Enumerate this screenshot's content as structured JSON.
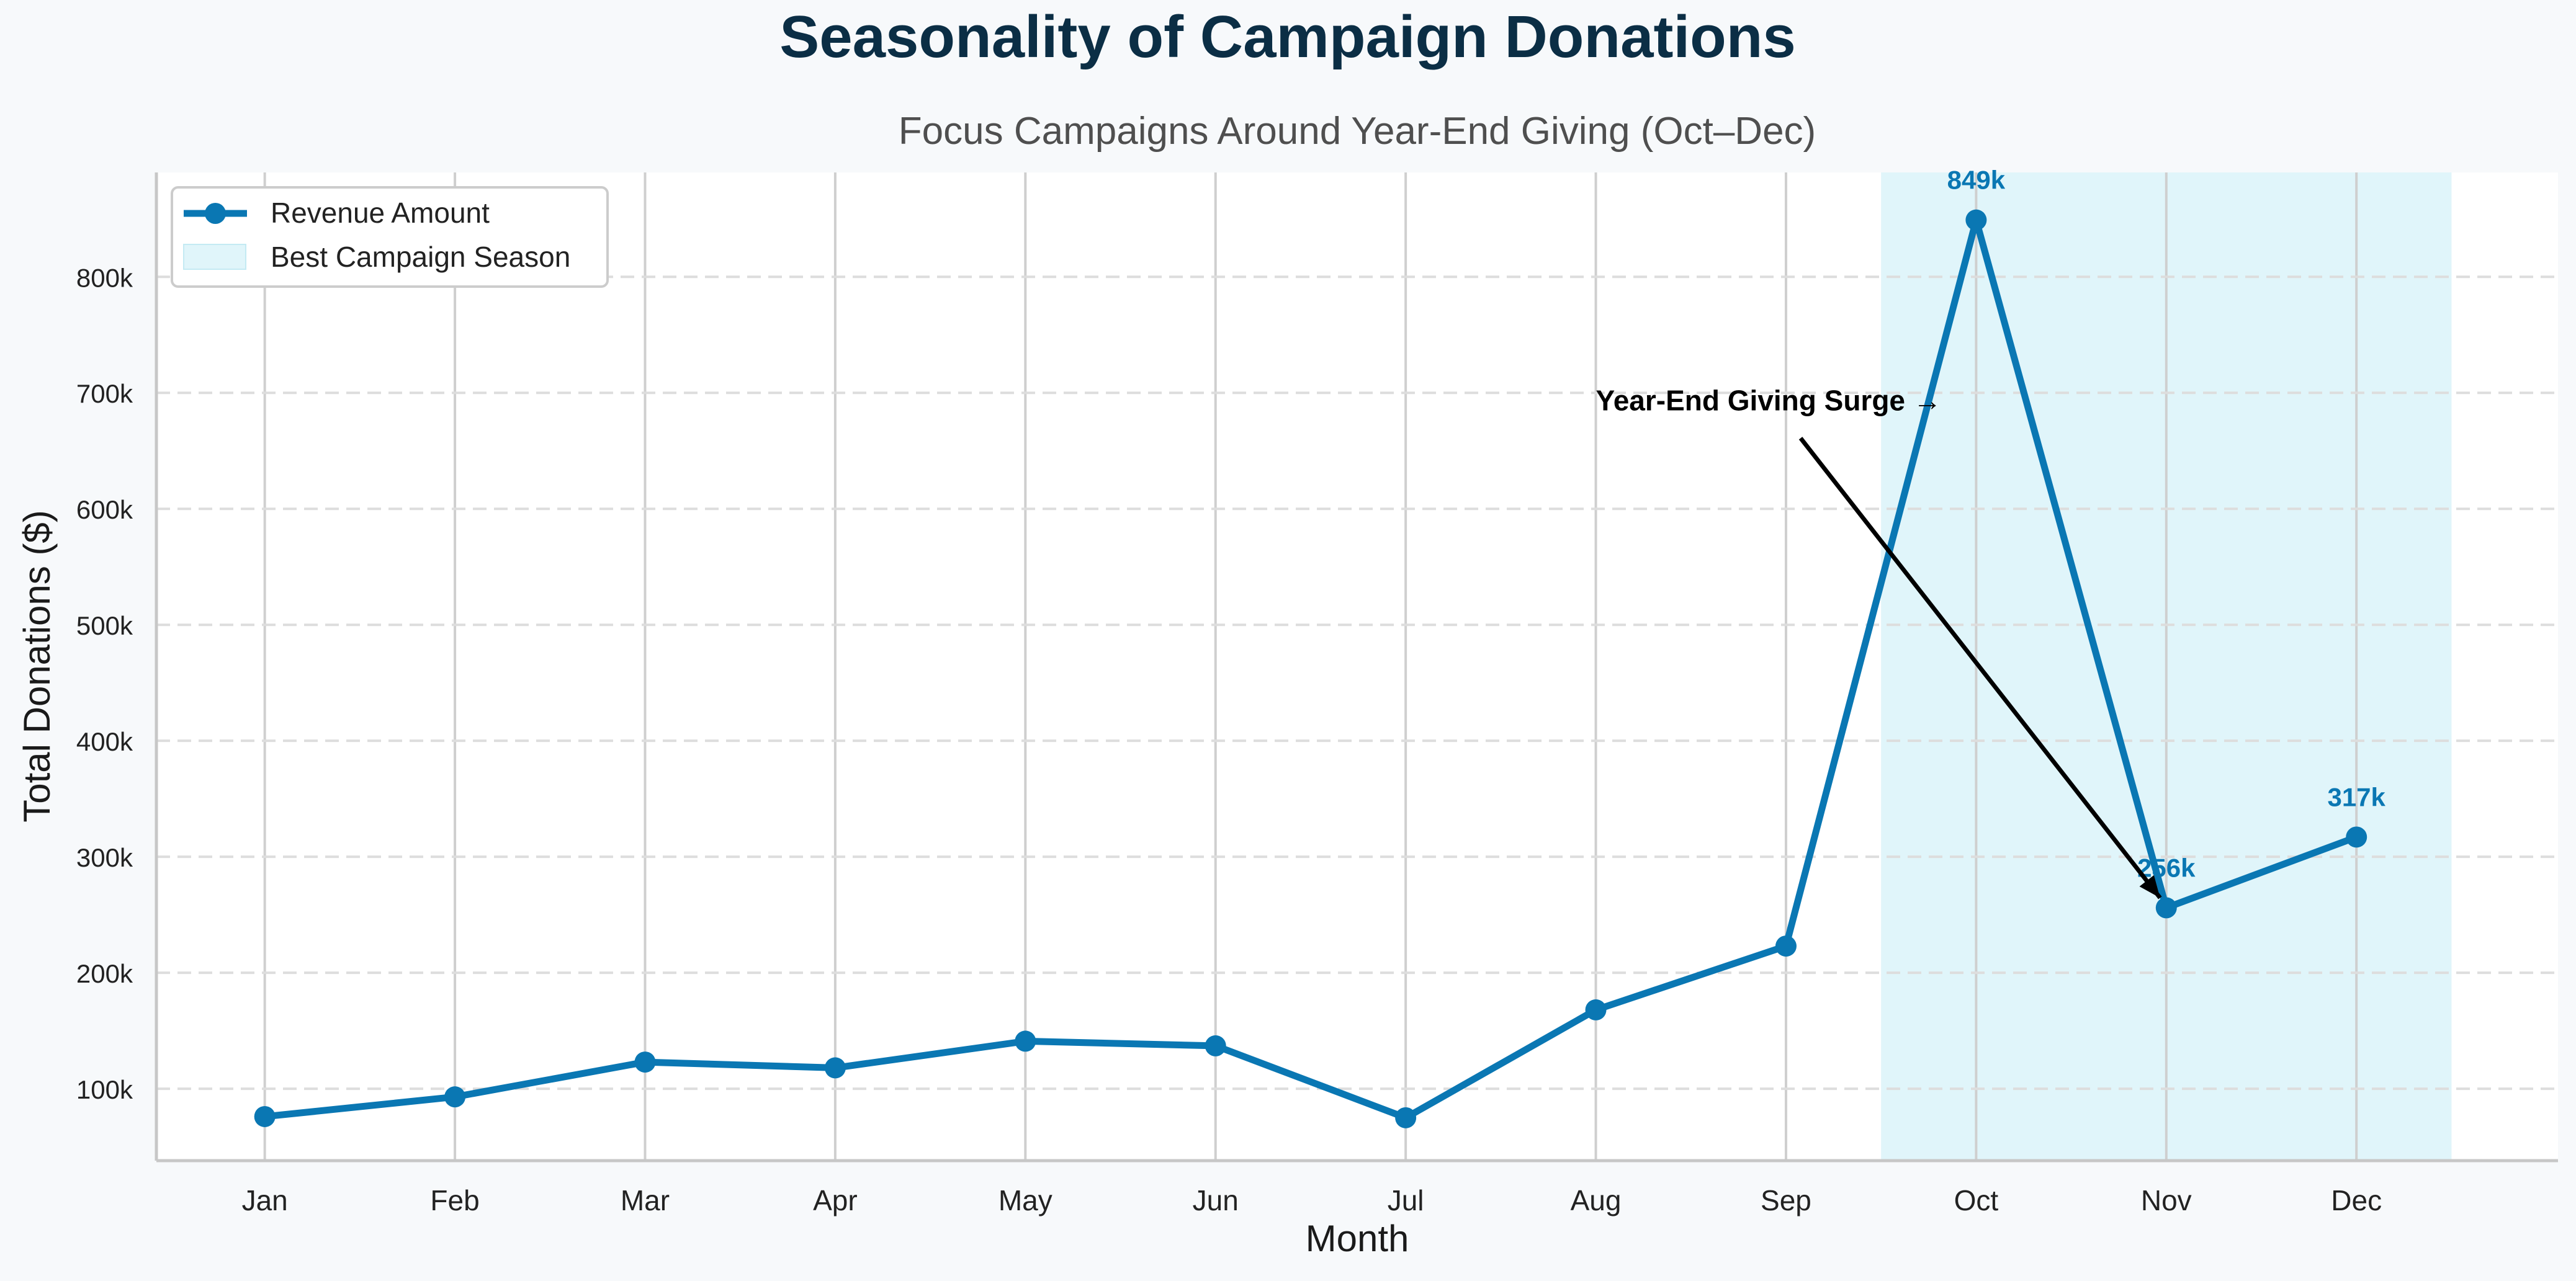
{
  "chart_data": {
    "type": "line",
    "title": "Seasonality of Campaign Donations",
    "subtitle": "Focus Campaigns Around Year-End Giving (Oct–Dec)",
    "xlabel": "Month",
    "ylabel": "Total Donations ($)",
    "categories": [
      "Jan",
      "Feb",
      "Mar",
      "Apr",
      "May",
      "Jun",
      "Jul",
      "Aug",
      "Sep",
      "Oct",
      "Nov",
      "Dec"
    ],
    "series": [
      {
        "name": "Revenue Amount",
        "values": [
          76000,
          93000,
          123000,
          118000,
          141000,
          137000,
          75000,
          168000,
          223000,
          849000,
          256000,
          317000
        ]
      }
    ],
    "data_labels": [
      {
        "category": "Oct",
        "text": "849k"
      },
      {
        "category": "Nov",
        "text": "256k"
      },
      {
        "category": "Dec",
        "text": "317k"
      }
    ],
    "highlight": {
      "name": "Best Campaign Season",
      "from_index": 8.5,
      "to_index": 11.5,
      "color": "#e0f5fa"
    },
    "annotation": {
      "text": "Year-End Giving Surge →",
      "text_category_index": 7,
      "text_value": 685000,
      "target_category": "Nov",
      "target_value": 256000
    },
    "ylim": [
      38000,
      890000
    ],
    "xlim": [
      -0.57,
      12.06
    ],
    "yticks": [
      100000,
      200000,
      300000,
      400000,
      500000,
      600000,
      700000,
      800000
    ],
    "ytick_labels": [
      "100k",
      "200k",
      "300k",
      "400k",
      "500k",
      "600k",
      "700k",
      "800k"
    ],
    "grid": {
      "x": "solid",
      "y": "dashed"
    },
    "legend_position": "top-left",
    "colors": {
      "line": "#0a77b3",
      "grid_x": "#cfcfcf",
      "grid_y": "#dddddd",
      "highlight": "#e0f5fa",
      "axis": "#c7c7c7"
    }
  }
}
